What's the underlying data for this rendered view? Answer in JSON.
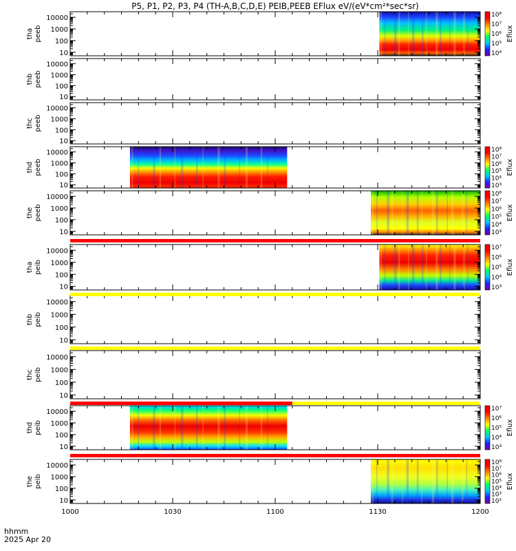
{
  "chart_data": {
    "type": "heatmap",
    "title": "P5, P1, P2, P3, P4 (TH-A,B,C,D,E) PEIB,PEEB EFlux eV/(eV*cm²*sec*sr)",
    "x_ticks": [
      "1000",
      "1030",
      "1100",
      "1130",
      "1200"
    ],
    "x_tick_minutes": [
      0,
      30,
      60,
      90,
      120
    ],
    "xlim_minutes": [
      0,
      120
    ],
    "x_label_line1": "hhmm",
    "x_label_line2": "2025 Apr 20",
    "y_scale": "log",
    "y_ticks": [
      "10",
      "100",
      "1000",
      "10000"
    ],
    "y_tick_values": [
      10,
      100,
      1000,
      10000
    ],
    "ylim": [
      5,
      30000
    ],
    "colorbar_label": "Eflux",
    "colormap": [
      "#7a00a0",
      "#2020ff",
      "#00c8ff",
      "#00ff60",
      "#ffff00",
      "#ff8000",
      "#ff0000",
      "#ee0000"
    ],
    "panels": [
      {
        "label_line1": "tha",
        "label_line2": "peeb",
        "data_start_min": 90.5,
        "data_end_min": 120,
        "colorbar": true,
        "cbar_ticks": [
          "10⁴",
          "10⁵",
          "10⁶",
          "10⁷",
          "10⁸"
        ],
        "profile": "electron_a"
      },
      {
        "label_line1": "thb",
        "label_line2": "peeb",
        "data_start_min": null,
        "data_end_min": null,
        "colorbar": false,
        "cbar_ticks": [],
        "profile": "none"
      },
      {
        "label_line1": "thc",
        "label_line2": "peeb",
        "data_start_min": null,
        "data_end_min": null,
        "colorbar": false,
        "cbar_ticks": [],
        "profile": "none"
      },
      {
        "label_line1": "thd",
        "label_line2": "peeb",
        "data_start_min": 17.5,
        "data_end_min": 63.5,
        "colorbar": true,
        "cbar_ticks": [
          "10³",
          "10⁴",
          "10⁵",
          "10⁶",
          "10⁷",
          "10⁸"
        ],
        "profile": "electron_d"
      },
      {
        "label_line1": "the",
        "label_line2": "peeb",
        "data_start_min": 88,
        "data_end_min": 120,
        "colorbar": true,
        "cbar_ticks": [
          "10³",
          "10⁴",
          "10⁵",
          "10⁶",
          "10⁷",
          "10⁸"
        ],
        "profile": "electron_e"
      },
      {
        "label_line1": "tha",
        "label_line2": "peib",
        "data_start_min": 90.5,
        "data_end_min": 120,
        "colorbar": true,
        "cbar_ticks": [
          "10³",
          "10⁴",
          "10⁵",
          "10⁶",
          "10⁷"
        ],
        "profile": "ion_a"
      },
      {
        "label_line1": "thb",
        "label_line2": "peib",
        "data_start_min": null,
        "data_end_min": null,
        "colorbar": false,
        "cbar_ticks": [],
        "profile": "none"
      },
      {
        "label_line1": "thc",
        "label_line2": "peib",
        "data_start_min": null,
        "data_end_min": null,
        "colorbar": false,
        "cbar_ticks": [],
        "profile": "none"
      },
      {
        "label_line1": "thd",
        "label_line2": "peib",
        "data_start_min": 17.5,
        "data_end_min": 63.5,
        "colorbar": true,
        "cbar_ticks": [
          "10³",
          "10⁴",
          "10⁵",
          "10⁶",
          "10⁷"
        ],
        "profile": "ion_d"
      },
      {
        "label_line1": "the",
        "label_line2": "peib",
        "data_start_min": 88,
        "data_end_min": 120,
        "colorbar": true,
        "cbar_ticks": [
          "10²",
          "10³",
          "10⁴",
          "10⁵",
          "10⁶",
          "10⁷",
          "10⁸"
        ],
        "profile": "ion_e"
      }
    ],
    "mode_bars": [
      {
        "after_panel": 4,
        "segments": [
          {
            "start_min": 0,
            "end_min": 120,
            "color": "#ff0000"
          }
        ]
      },
      {
        "after_panel": 5,
        "segments": [
          {
            "start_min": 0,
            "end_min": 120,
            "color": "#ffff00"
          }
        ]
      },
      {
        "after_panel": 6,
        "segments": [
          {
            "start_min": 0,
            "end_min": 120,
            "color": "#ffff00"
          }
        ]
      },
      {
        "after_panel": 7,
        "segments": [
          {
            "start_min": 0,
            "end_min": 65,
            "color": "#ff0000"
          },
          {
            "start_min": 65,
            "end_min": 120,
            "color": "#ffff00"
          }
        ]
      },
      {
        "after_panel": 8,
        "segments": [
          {
            "start_min": 0,
            "end_min": 120,
            "color": "#ff0000"
          }
        ]
      }
    ]
  }
}
